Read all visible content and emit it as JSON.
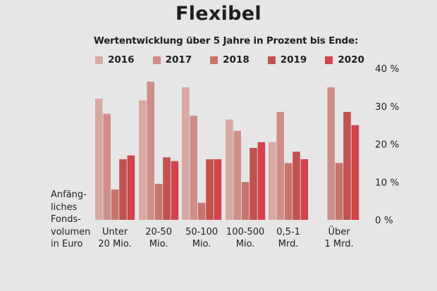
{
  "chart_data": {
    "type": "bar",
    "title": "Flexibel",
    "subtitle": "Wertentwicklung über 5 Jahre in Prozent bis Ende:",
    "ylabel": "Anfäng-\nliches\nFonds-\nvolumen\nin Euro",
    "categories": [
      [
        "Unter",
        "20 Mio."
      ],
      [
        "20-50",
        "Mio."
      ],
      [
        "50-100",
        "Mio."
      ],
      [
        "100-500",
        "Mio."
      ],
      [
        "0,5-1",
        "Mrd."
      ],
      [
        "Über",
        "1 Mrd."
      ]
    ],
    "series": [
      {
        "name": "2016",
        "color": "#d8a8a2",
        "values": [
          32,
          31.5,
          35,
          26.5,
          20.5,
          null
        ]
      },
      {
        "name": "2017",
        "color": "#cf8f88",
        "values": [
          28,
          36.5,
          27.5,
          23.5,
          28.5,
          35
        ]
      },
      {
        "name": "2018",
        "color": "#c6756c",
        "values": [
          8,
          9.5,
          4.5,
          10,
          15,
          15
        ]
      },
      {
        "name": "2019",
        "color": "#c2524f",
        "values": [
          16,
          16.5,
          16,
          19,
          18,
          28.5
        ]
      },
      {
        "name": "2020",
        "color": "#d2434a",
        "values": [
          17,
          15.5,
          16,
          20.5,
          16,
          25
        ]
      }
    ],
    "ylim": [
      0,
      40
    ],
    "yticks": [
      0,
      10,
      20,
      30,
      40
    ],
    "ytick_labels": [
      "0 %",
      "10 %",
      "20 %",
      "30 %",
      "40 %"
    ],
    "grid": false,
    "legend_position": "top"
  }
}
